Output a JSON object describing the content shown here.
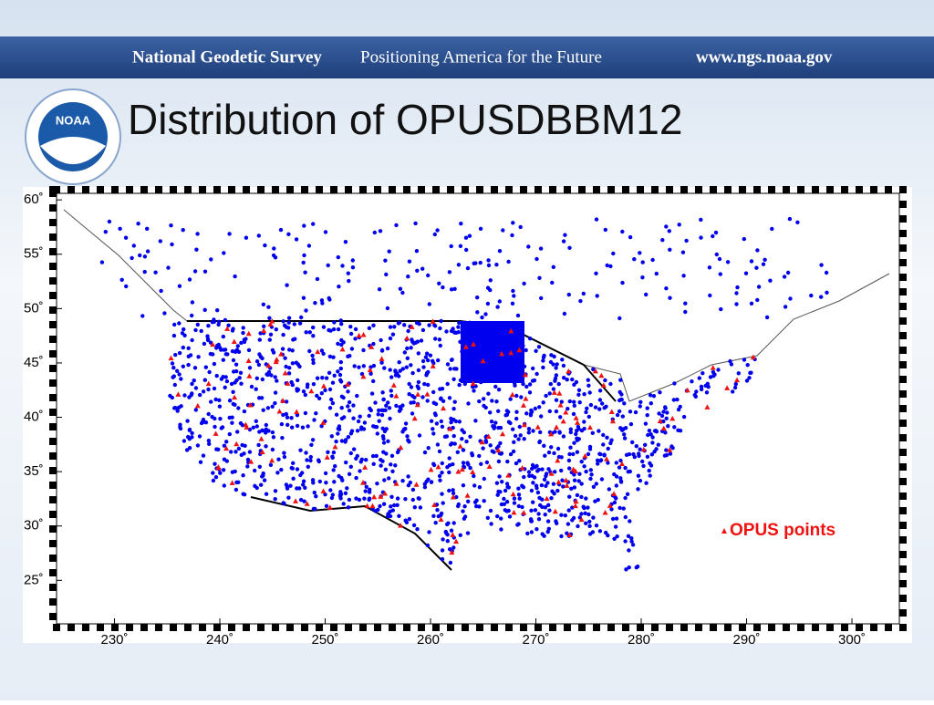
{
  "header": {
    "organization": "National Geodetic Survey",
    "tagline": "Positioning America for the Future",
    "url": "www.ngs.noaa.gov"
  },
  "logo": "NOAA",
  "title": "Distribution of OPUSDBBM12",
  "map": {
    "xlim": [
      224.5,
      304.5
    ],
    "ylim": [
      21,
      60.6
    ],
    "xticks": [
      {
        "value": 230,
        "label": "230˚"
      },
      {
        "value": 240,
        "label": "240˚"
      },
      {
        "value": 250,
        "label": "250˚"
      },
      {
        "value": 260,
        "label": "260˚"
      },
      {
        "value": 270,
        "label": "270˚"
      },
      {
        "value": 280,
        "label": "280˚"
      },
      {
        "value": 290,
        "label": "290˚"
      },
      {
        "value": 300,
        "label": "300˚"
      }
    ],
    "yticks": [
      {
        "value": 25,
        "label": "25˚"
      },
      {
        "value": 30,
        "label": "30˚"
      },
      {
        "value": 35,
        "label": "35˚"
      },
      {
        "value": 40,
        "label": "40˚"
      },
      {
        "value": 45,
        "label": "45˚"
      },
      {
        "value": 50,
        "label": "50˚"
      },
      {
        "value": 55,
        "label": "55˚"
      },
      {
        "value": 60,
        "label": "60˚"
      }
    ],
    "legend": "OPUS points",
    "dot_color": "#0000ee",
    "opus_color": "#ee1111"
  }
}
